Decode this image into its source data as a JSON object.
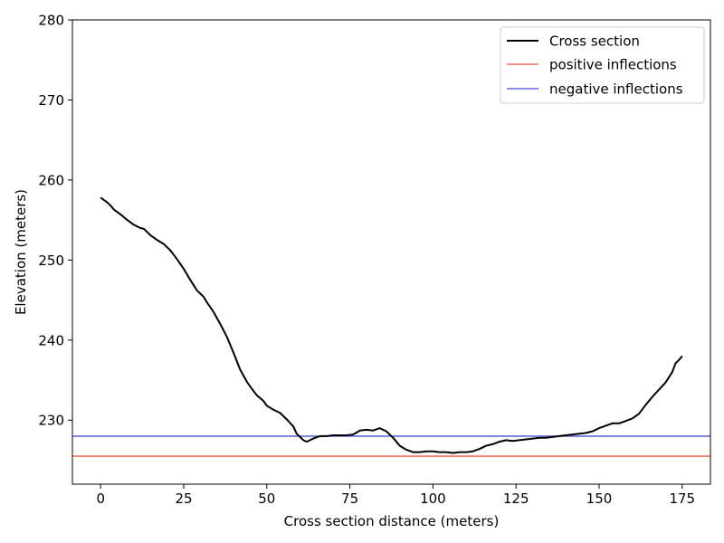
{
  "chart_data": {
    "type": "line",
    "title": "",
    "xlabel": "Cross section distance (meters)",
    "ylabel": "Elevation (meters)",
    "xlim": [
      -8.5,
      183.5
    ],
    "ylim": [
      222,
      280
    ],
    "xticks": [
      0,
      25,
      50,
      75,
      100,
      125,
      150,
      175
    ],
    "yticks": [
      230,
      240,
      250,
      260,
      270,
      280
    ],
    "grid": false,
    "legend_position": "top-right",
    "series": [
      {
        "name": "Cross section",
        "color": "#000000",
        "x": [
          0,
          2,
          3,
          4,
          6,
          8,
          10,
          12,
          13,
          15,
          17,
          19,
          21,
          23,
          25,
          27,
          29,
          31,
          32,
          34,
          36,
          38,
          40,
          42,
          44,
          45,
          47,
          49,
          50,
          52,
          54,
          56,
          58,
          59,
          60,
          61,
          62,
          64,
          66,
          68,
          70,
          72,
          74,
          76,
          78,
          80,
          82,
          84,
          86,
          88,
          90,
          92,
          94,
          96,
          98,
          100,
          102,
          104,
          106,
          108,
          110,
          112,
          114,
          116,
          118,
          120,
          122,
          124,
          126,
          128,
          130,
          132,
          134,
          136,
          138,
          140,
          142,
          144,
          146,
          148,
          150,
          152,
          154,
          156,
          158,
          160,
          162,
          164,
          166,
          168,
          170,
          172,
          173,
          174,
          175
        ],
        "y": [
          257.8,
          257.2,
          256.8,
          256.3,
          255.7,
          255.0,
          254.4,
          254.0,
          253.9,
          253.1,
          252.5,
          252.0,
          251.2,
          250.1,
          248.9,
          247.5,
          246.2,
          245.4,
          244.7,
          243.5,
          242.0,
          240.4,
          238.4,
          236.3,
          234.8,
          234.2,
          233.1,
          232.4,
          231.8,
          231.3,
          230.9,
          230.1,
          229.2,
          228.3,
          227.9,
          227.5,
          227.3,
          227.7,
          228.0,
          228.0,
          228.1,
          228.1,
          228.1,
          228.2,
          228.7,
          228.8,
          228.7,
          229.0,
          228.6,
          227.8,
          226.8,
          226.3,
          226.0,
          226.0,
          226.1,
          226.1,
          226.0,
          226.0,
          225.9,
          226.0,
          226.0,
          226.1,
          226.4,
          226.8,
          227.0,
          227.3,
          227.5,
          227.4,
          227.5,
          227.6,
          227.7,
          227.8,
          227.8,
          227.9,
          228.0,
          228.1,
          228.2,
          228.3,
          228.4,
          228.6,
          229.0,
          229.3,
          229.6,
          229.6,
          229.9,
          230.2,
          230.8,
          231.9,
          232.9,
          233.8,
          234.7,
          236.0,
          237.1,
          237.5,
          238.0
        ]
      },
      {
        "name": "positive inflections",
        "color": "#f07060",
        "y": 225.5
      },
      {
        "name": "negative inflections",
        "color": "#6666dd",
        "y": 228.0
      }
    ]
  }
}
